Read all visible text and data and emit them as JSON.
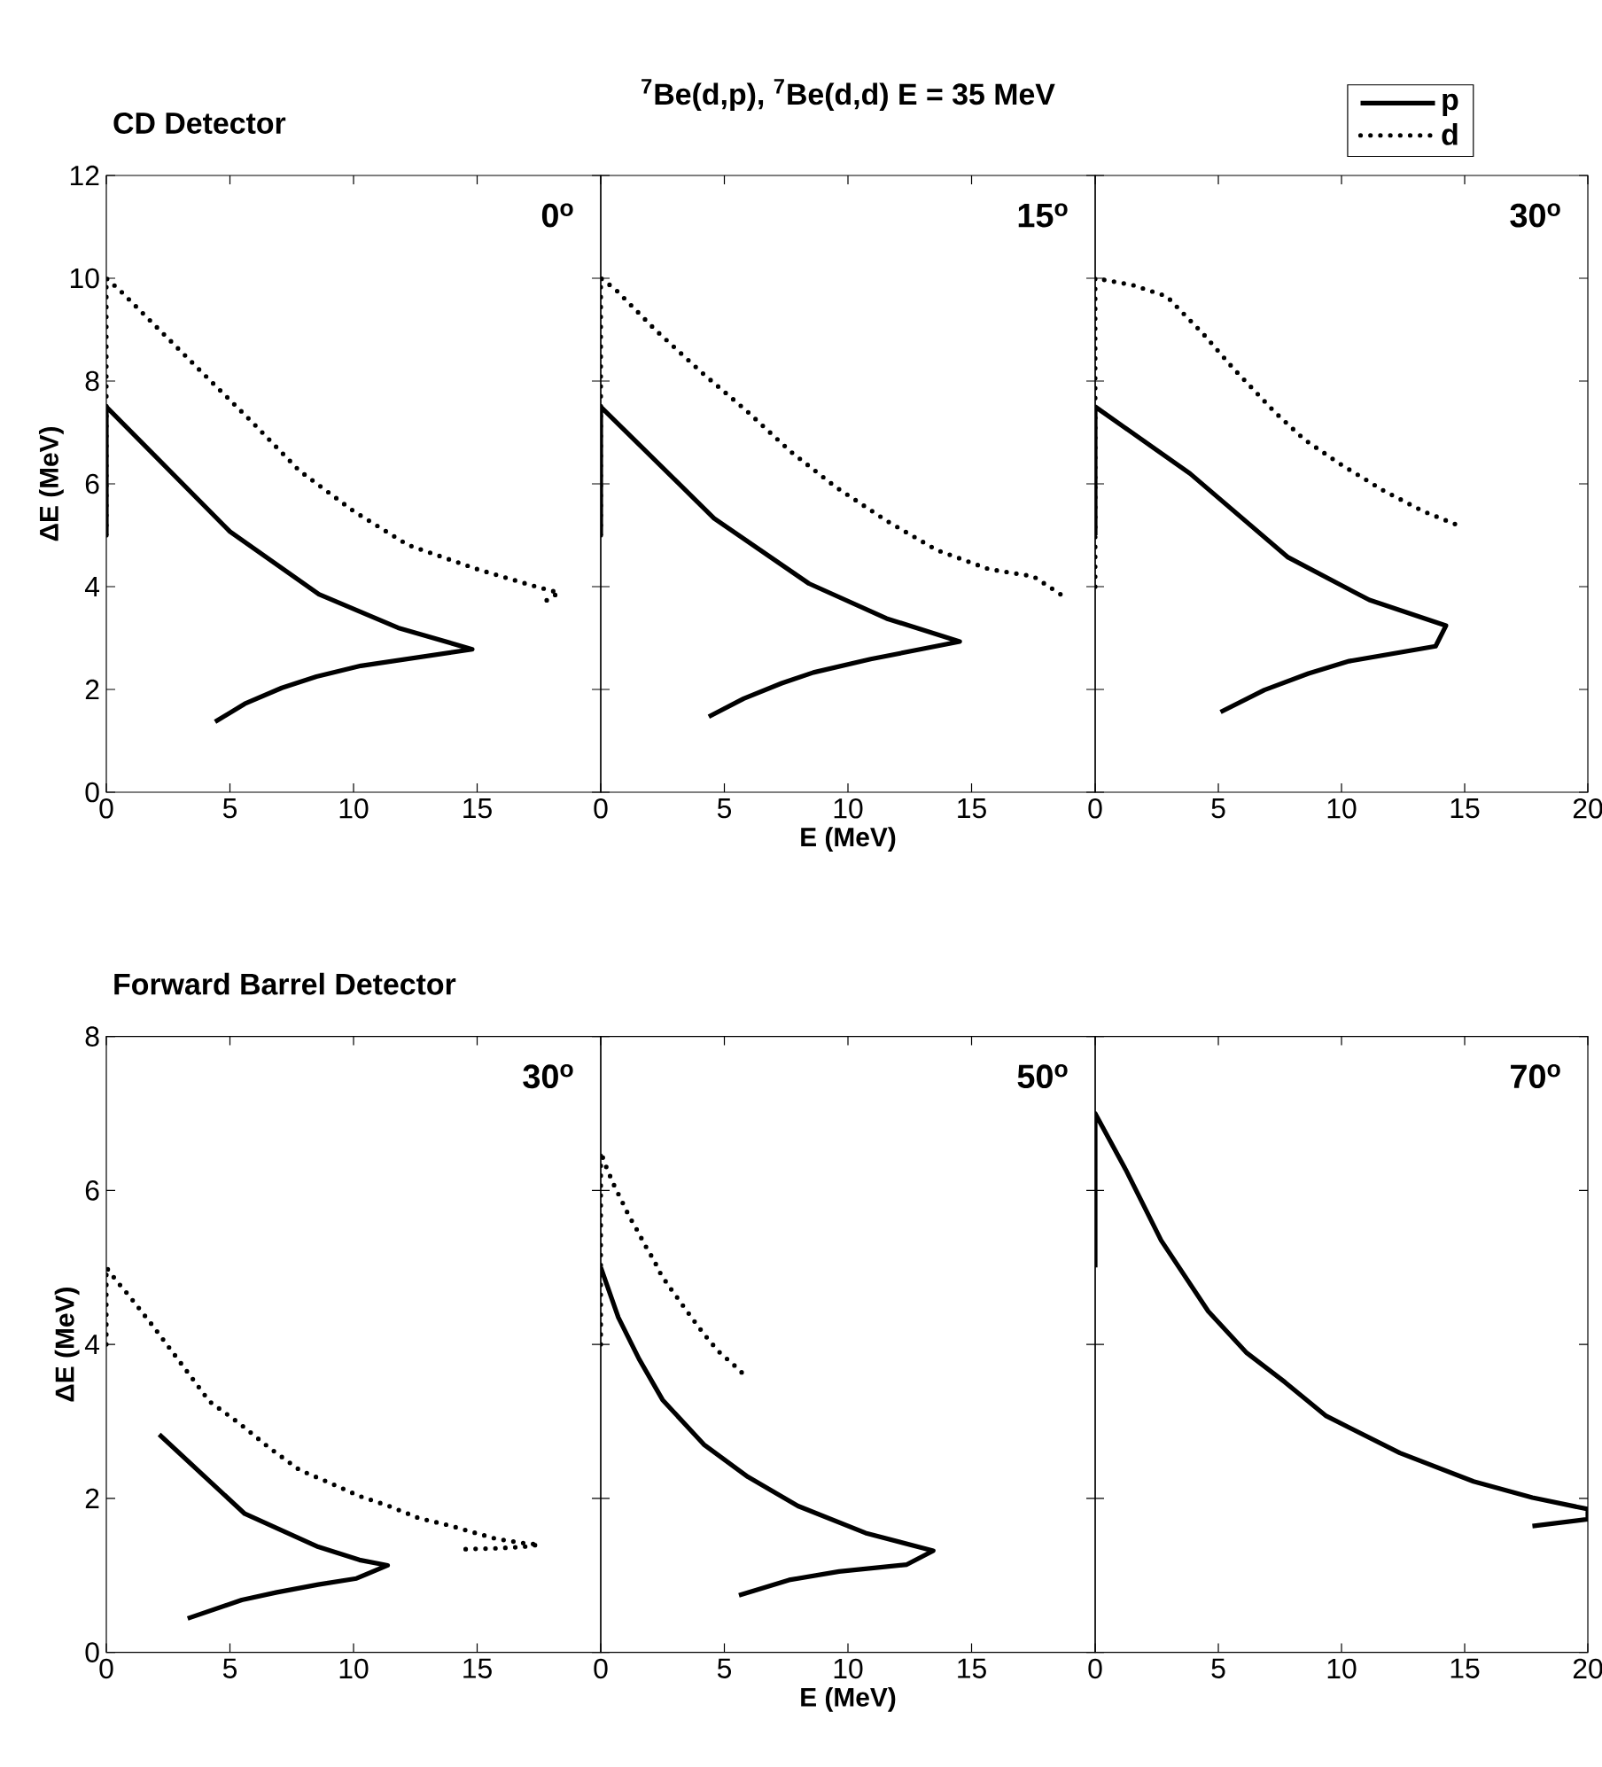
{
  "chart_data": [
    {
      "type": "line",
      "title": "CD Detector",
      "ylabel": "ΔE (MeV)",
      "xlim": [
        0,
        20
      ],
      "ylim": [
        0,
        12
      ],
      "xticks": [
        0,
        5,
        10,
        15
      ],
      "yticks": [
        0,
        2,
        4,
        6,
        8,
        10,
        12
      ],
      "annotations": [
        "0$^{o}$"
      ],
      "series": [
        {
          "color": "#000000",
          "line_style": "solid",
          "x": [
            0,
            0,
            5.0,
            8.6,
            11.8,
            14.8,
            10.3,
            8.5,
            7.1,
            5.6,
            4.4
          ],
          "values": [
            5,
            7.5,
            5.07,
            3.85,
            3.2,
            2.78,
            2.46,
            2.25,
            2.03,
            1.72,
            1.37
          ]
        },
        {
          "color": "#000000",
          "line_style": "dotted",
          "x": [
            0,
            0,
            0.6,
            3.7,
            5.9,
            7.8,
            10,
            12.2,
            15,
            17.1,
            18.3,
            17.7
          ],
          "values": [
            5,
            10,
            9.74,
            8.25,
            7.2,
            6.26,
            5.47,
            4.81,
            4.34,
            4.04,
            3.88,
            3.7
          ]
        }
      ]
    },
    {
      "type": "line",
      "title": "$^{7}$Be(d,p), $^{7}$Be(d,d)  E = 35 MeV",
      "xlabel": "E (MeV)",
      "xlim": [
        0,
        20
      ],
      "ylim": [
        0,
        12
      ],
      "xticks": [
        0,
        5,
        10,
        15
      ],
      "yticks": [
        0,
        2,
        4,
        6,
        8,
        10,
        12
      ],
      "tick_labels": "x",
      "annotations": [
        "15$^{o}$"
      ],
      "series": [
        {
          "color": "#000000",
          "line_style": "solid",
          "x": [
            0,
            0,
            4.58,
            8.42,
            11.56,
            14.52,
            10.92,
            8.6,
            7.32,
            5.78,
            4.37
          ],
          "values": [
            5,
            7.5,
            5.33,
            4.06,
            3.38,
            2.93,
            2.59,
            2.33,
            2.12,
            1.82,
            1.47
          ]
        },
        {
          "color": "#000000",
          "line_style": "dotted",
          "x": [
            0,
            0,
            0.58,
            2.2,
            4.1,
            5.9,
            7.7,
            9.5,
            11.6,
            13.6,
            15.7,
            17.5,
            18.6
          ],
          "values": [
            5,
            10,
            9.79,
            9.0,
            8.16,
            7.42,
            6.62,
            5.94,
            5.27,
            4.71,
            4.34,
            4.2,
            3.85
          ]
        }
      ]
    },
    {
      "type": "line",
      "xlim": [
        0,
        20
      ],
      "ylim": [
        0,
        12
      ],
      "xticks": [
        0,
        5,
        10,
        15,
        20
      ],
      "yticks": [
        0,
        2,
        4,
        6,
        8,
        10,
        12
      ],
      "tick_labels": "x",
      "annotations": [
        "30$^{o}$"
      ],
      "legend": "top right",
      "series": [
        {
          "name": "p",
          "color": "#000000",
          "line_style": "solid",
          "x": [
            0,
            0,
            3.85,
            7.83,
            11.13,
            14.24,
            13.82,
            10.31,
            8.66,
            6.87,
            5.09
          ],
          "values": [
            5,
            7.5,
            6.2,
            4.57,
            3.74,
            3.24,
            2.84,
            2.55,
            2.31,
            1.99,
            1.56
          ]
        },
        {
          "name": "d",
          "color": "#000000",
          "line_style": "dotted",
          "x": [
            0,
            0,
            1.5,
            2.9,
            4.4,
            5.6,
            7.3,
            8.5,
            9.9,
            11.7,
            13.3,
            14.8
          ],
          "values": [
            4,
            10,
            9.87,
            9.65,
            8.91,
            8.25,
            7.39,
            6.86,
            6.4,
            5.87,
            5.47,
            5.18
          ]
        }
      ]
    },
    {
      "type": "line",
      "title": "Forward Barrel Detector",
      "ylabel": "ΔE (MeV)",
      "xlim": [
        0,
        20
      ],
      "ylim": [
        0,
        8
      ],
      "xticks": [
        0,
        5,
        10,
        15
      ],
      "yticks": [
        0,
        2,
        4,
        6,
        8
      ],
      "annotations": [
        "30$^{o}$"
      ],
      "series": [
        {
          "color": "#000000",
          "line_style": "solid",
          "x": [
            2.14,
            5.6,
            8.57,
            10.24,
            11.38,
            10.12,
            8.57,
            6.9,
            5.48,
            3.29
          ],
          "values": [
            2.83,
            1.8,
            1.37,
            1.2,
            1.13,
            0.96,
            0.88,
            0.78,
            0.68,
            0.44
          ]
        },
        {
          "color": "#000000",
          "line_style": "dotted",
          "x": [
            0,
            0,
            0.4,
            0.9,
            1.86,
            3.24,
            4.17,
            5.4,
            6.62,
            7.81,
            9.05,
            10.24,
            11.43,
            12.67,
            13.86,
            15.05,
            15.71,
            16.24,
            16.86,
            17.5,
            16.86,
            15.71,
            14.48
          ],
          "values": [
            4,
            5,
            4.83,
            4.64,
            4.25,
            3.66,
            3.26,
            2.97,
            2.65,
            2.37,
            2.2,
            2.03,
            1.9,
            1.74,
            1.65,
            1.54,
            1.48,
            1.45,
            1.42,
            1.4,
            1.37,
            1.35,
            1.34
          ]
        }
      ]
    },
    {
      "type": "line",
      "xlabel": "E (MeV)",
      "xlim": [
        0,
        20
      ],
      "ylim": [
        0,
        8
      ],
      "xticks": [
        0,
        5,
        10,
        15
      ],
      "yticks": [
        0,
        2,
        4,
        6,
        8
      ],
      "tick_labels": "x",
      "annotations": [
        "50$^{o}$"
      ],
      "series": [
        {
          "color": "#000000",
          "line_style": "solid",
          "x": [
            0,
            0.71,
            1.55,
            2.5,
            4.17,
            5.95,
            7.98,
            10.71,
            13.45,
            12.38,
            9.64,
            7.62,
            5.59
          ],
          "values": [
            5,
            4.35,
            3.81,
            3.28,
            2.7,
            2.28,
            1.9,
            1.55,
            1.32,
            1.14,
            1.05,
            0.94,
            0.74
          ]
        },
        {
          "color": "#000000",
          "line_style": "dotted",
          "x": [
            0,
            0,
            0.24,
            0.52,
            0.84,
            1.14,
            1.48,
            1.79,
            2.14,
            2.45,
            2.86,
            3.29,
            3.74,
            4.21,
            4.76,
            5.36,
            5.95
          ],
          "values": [
            4,
            6.5,
            6.29,
            6.08,
            5.87,
            5.67,
            5.48,
            5.29,
            5.1,
            4.9,
            4.71,
            4.52,
            4.32,
            4.12,
            3.91,
            3.74,
            3.56
          ]
        }
      ]
    },
    {
      "type": "line",
      "xlim": [
        0,
        20
      ],
      "ylim": [
        0,
        8
      ],
      "xticks": [
        0,
        5,
        10,
        15,
        20
      ],
      "yticks": [
        0,
        2,
        4,
        6,
        8
      ],
      "tick_labels": "x",
      "annotations": [
        "70$^{o}$"
      ],
      "series": [
        {
          "color": "#000000",
          "line_style": "solid",
          "x": [
            0,
            0,
            1.24,
            2.68,
            4.59,
            6.15,
            7.7,
            9.38,
            12.37,
            15.36,
            17.75,
            20,
            20,
            17.75
          ],
          "values": [
            5,
            7,
            6.27,
            5.35,
            4.43,
            3.89,
            3.51,
            3.07,
            2.59,
            2.22,
            2.01,
            1.86,
            1.73,
            1.64
          ]
        }
      ]
    }
  ]
}
